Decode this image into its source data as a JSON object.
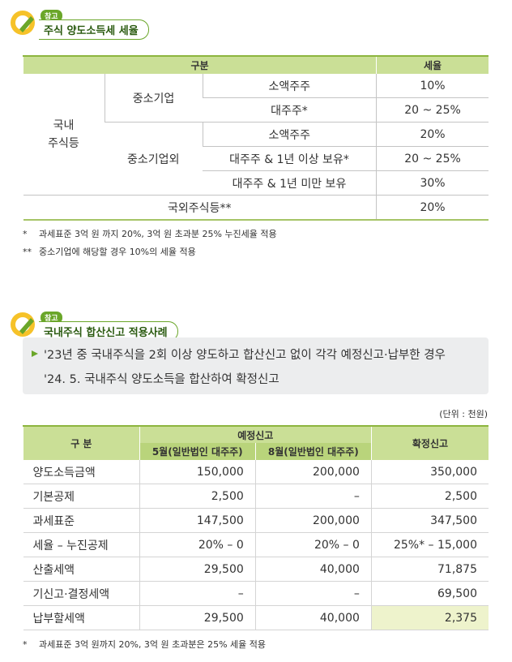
{
  "section1": {
    "badge": "참고",
    "title": "주식 양도소득세 세율",
    "table": {
      "header": [
        "구분",
        "세율"
      ],
      "domestic": "국내\n주식등",
      "groups": [
        {
          "name": "중소기업",
          "rows": [
            [
              "소액주주",
              "10%"
            ],
            [
              "대주주*",
              "20 ~ 25%"
            ]
          ]
        },
        {
          "name": "중소기업외",
          "rows": [
            [
              "소액주주",
              "20%"
            ],
            [
              "대주주 & 1년 이상 보유*",
              "20 ~ 25%"
            ],
            [
              "대주주 & 1년 미만 보유",
              "30%"
            ]
          ]
        }
      ],
      "foreign": [
        "국외주식등**",
        "20%"
      ]
    },
    "notes": [
      [
        "*",
        "과세표준 3억 원 까지 20%, 3억 원 초과분 25% 누진세율 적용"
      ],
      [
        "**",
        "중소기업에 해당할 경우 10%의 세율 적용"
      ]
    ]
  },
  "section2": {
    "badge": "참고",
    "title": "국내주식 합산신고 적용사례",
    "box": [
      "'23년 중 국내주식을 2회 이상 양도하고 합산신고 없이 각각 예정신고·납부한 경우",
      "'24. 5. 국내주식 양도소득을 합산하여 확정신고"
    ],
    "unit": "(단위 : 천원)",
    "table": {
      "header": {
        "label": "구 분",
        "group": "예정신고",
        "sub": [
          "5월(일반법인 대주주)",
          "8월(일반법인 대주주)"
        ],
        "final": "확정신고"
      },
      "rows": [
        [
          "양도소득금액",
          "150,000",
          "200,000",
          "350,000"
        ],
        [
          "기본공제",
          "2,500",
          "–",
          "2,500"
        ],
        [
          "과세표준",
          "147,500",
          "200,000",
          "347,500"
        ],
        [
          "세율 – 누진공제",
          "20% – 0",
          "20% – 0",
          "25%* – 15,000"
        ],
        [
          "산출세액",
          "29,500",
          "40,000",
          "71,875"
        ],
        [
          "기신고·결정세액",
          "–",
          "–",
          "69,500"
        ],
        [
          "납부할세액",
          "29,500",
          "40,000",
          "2,375"
        ]
      ]
    },
    "notes": [
      [
        "*",
        "과세표준 3억 원까지 20%, 3억 원 초과분은 25% 세율 적용"
      ]
    ]
  }
}
